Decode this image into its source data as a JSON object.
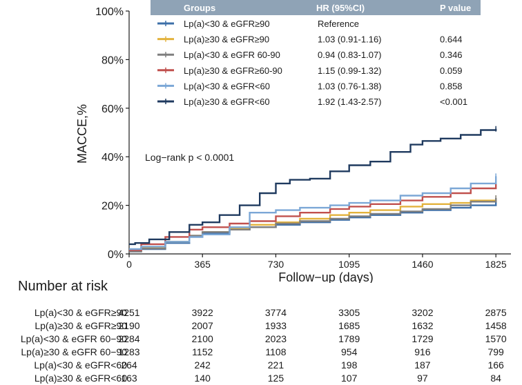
{
  "chart_data": {
    "type": "line",
    "title": "",
    "xlabel": "Follow−up (days)",
    "ylabel": "MACCE,%",
    "xlim": [
      0,
      1900
    ],
    "ylim": [
      0,
      100
    ],
    "x_ticks": [
      0,
      365,
      730,
      1095,
      1460,
      1825
    ],
    "y_ticks": [
      0,
      20,
      40,
      60,
      80,
      100
    ],
    "y_tick_labels": [
      "0%",
      "20%",
      "40%",
      "60%",
      "80%",
      "100%"
    ],
    "annotation": "Log−rank p < 0.0001",
    "legend": {
      "position": "top-right",
      "headers": [
        "Groups",
        "HR (95%CI)",
        "P value"
      ]
    },
    "series": [
      {
        "name": "Lp(a)<30 & eGFR≥90",
        "hr": "Reference",
        "p": "",
        "color": "#3c6fa8",
        "x": [
          0,
          60,
          180,
          300,
          365,
          500,
          600,
          730,
          850,
          1000,
          1095,
          1200,
          1350,
          1460,
          1600,
          1700,
          1825
        ],
        "y": [
          1.0,
          2.0,
          4.5,
          7.0,
          8.5,
          10.0,
          11.0,
          12.0,
          13.0,
          14.0,
          15.0,
          16.0,
          17.0,
          18.0,
          19.0,
          20.0,
          22.0
        ]
      },
      {
        "name": "Lp(a)≥30 & eGFR≥90",
        "hr": "1.03 (0.91-1.16)",
        "p": "0.644",
        "color": "#e3b23c",
        "x": [
          0,
          60,
          180,
          300,
          365,
          500,
          600,
          730,
          850,
          1000,
          1095,
          1200,
          1350,
          1460,
          1600,
          1700,
          1825
        ],
        "y": [
          1.2,
          2.5,
          5.0,
          7.5,
          9.0,
          10.5,
          12.0,
          13.0,
          14.5,
          16.0,
          17.0,
          18.0,
          19.5,
          20.5,
          21.0,
          22.0,
          23.0
        ]
      },
      {
        "name": "Lp(a)<30 & eGFR 60-90",
        "hr": "0.94 (0.83-1.07)",
        "p": "0.346",
        "color": "#7f7f7f",
        "x": [
          0,
          60,
          180,
          300,
          365,
          500,
          600,
          730,
          850,
          1000,
          1095,
          1200,
          1350,
          1460,
          1600,
          1700,
          1825
        ],
        "y": [
          1.0,
          2.2,
          5.0,
          7.5,
          9.0,
          10.0,
          11.0,
          12.5,
          13.5,
          14.5,
          15.5,
          16.5,
          17.5,
          18.5,
          20.0,
          21.5,
          23.0
        ]
      },
      {
        "name": "Lp(a)≥30 & eGFR≥60-90",
        "hr": "1.15 (0.99-1.32)",
        "p": "0.059",
        "color": "#c0504d",
        "x": [
          0,
          60,
          180,
          300,
          365,
          500,
          600,
          730,
          850,
          1000,
          1095,
          1200,
          1350,
          1460,
          1600,
          1700,
          1825
        ],
        "y": [
          1.5,
          4.0,
          7.0,
          10.0,
          11.0,
          12.5,
          13.5,
          15.5,
          17.0,
          18.5,
          19.5,
          20.5,
          22.0,
          23.5,
          25.0,
          27.0,
          29.0
        ]
      },
      {
        "name": "Lp(a)<30 & eGFR<60",
        "hr": "1.03 (0.76-1.38)",
        "p": "0.858",
        "color": "#7ba7d6",
        "x": [
          0,
          60,
          180,
          300,
          365,
          500,
          600,
          730,
          850,
          1000,
          1095,
          1200,
          1350,
          1460,
          1600,
          1700,
          1825
        ],
        "y": [
          2.0,
          3.0,
          5.0,
          7.0,
          8.0,
          11.0,
          17.0,
          18.0,
          19.0,
          20.0,
          21.0,
          22.0,
          24.0,
          25.0,
          27.0,
          29.0,
          32.0
        ]
      },
      {
        "name": "Lp(a)≥30 & eGFR<60",
        "hr": "1.92 (1.43-2.57)",
        "p": "<0.001",
        "color": "#1f3a5f",
        "x": [
          0,
          30,
          100,
          200,
          300,
          365,
          450,
          550,
          650,
          730,
          800,
          900,
          1000,
          1095,
          1200,
          1300,
          1400,
          1460,
          1550,
          1650,
          1750,
          1825
        ],
        "y": [
          4.0,
          4.5,
          6.0,
          9.0,
          12.0,
          13.0,
          16.0,
          20.0,
          25.0,
          29.0,
          30.5,
          31.0,
          34.0,
          36.5,
          38.0,
          42.0,
          45.0,
          46.5,
          47.5,
          49.0,
          51.0,
          51.5
        ]
      }
    ],
    "risk_table": {
      "title": "Number at risk",
      "columns_days": [
        0,
        365,
        730,
        1095,
        1460,
        1825
      ],
      "rows": [
        {
          "label": "Lp(a)<30 & eGFR≥90",
          "values": [
            4251,
            3922,
            3774,
            3305,
            3202,
            2875
          ]
        },
        {
          "label": "Lp(a)≥30 & eGFR≥90",
          "values": [
            2190,
            2007,
            1933,
            1685,
            1632,
            1458
          ]
        },
        {
          "label": "Lp(a)<30 & eGFR 60−90",
          "values": [
            2284,
            2100,
            2023,
            1789,
            1729,
            1570
          ]
        },
        {
          "label": "Lp(a)≥30 & eGFR 60−90",
          "values": [
            1283,
            1152,
            1108,
            954,
            916,
            799
          ]
        },
        {
          "label": "Lp(a)<30 & eGFR<60",
          "values": [
            264,
            242,
            221,
            198,
            187,
            166
          ]
        },
        {
          "label": "Lp(a)≥30 & eGFR<60",
          "values": [
            163,
            140,
            125,
            107,
            97,
            84
          ]
        }
      ]
    }
  }
}
